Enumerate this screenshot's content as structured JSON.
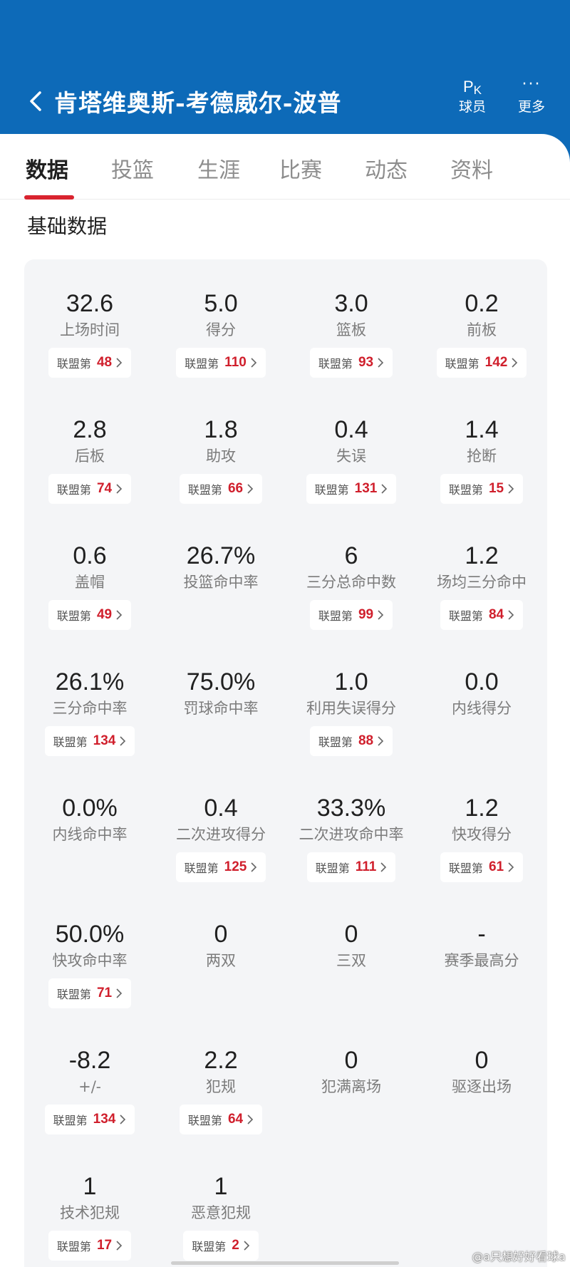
{
  "header": {
    "title": "肯塔维奥斯-考德威尔-波普",
    "pk_glyph_main": "P",
    "pk_glyph_sub": "K",
    "pk_label": "球员",
    "more_glyph": "···",
    "more_label": "更多",
    "bg_color": "#0d6ab8"
  },
  "tabs": [
    {
      "label": "数据",
      "active": true
    },
    {
      "label": "投篮",
      "active": false
    },
    {
      "label": "生涯",
      "active": false
    },
    {
      "label": "比赛",
      "active": false
    },
    {
      "label": "动态",
      "active": false
    },
    {
      "label": "资料",
      "active": false
    }
  ],
  "section_title": "基础数据",
  "rank_prefix": "联盟第",
  "accent_color": "#d01f2c",
  "stats": [
    [
      {
        "value": "32.6",
        "label": "上场时间",
        "rank": "48"
      },
      {
        "value": "5.0",
        "label": "得分",
        "rank": "110"
      },
      {
        "value": "3.0",
        "label": "篮板",
        "rank": "93"
      },
      {
        "value": "0.2",
        "label": "前板",
        "rank": "142"
      }
    ],
    [
      {
        "value": "2.8",
        "label": "后板",
        "rank": "74"
      },
      {
        "value": "1.8",
        "label": "助攻",
        "rank": "66"
      },
      {
        "value": "0.4",
        "label": "失误",
        "rank": "131"
      },
      {
        "value": "1.4",
        "label": "抢断",
        "rank": "15"
      }
    ],
    [
      {
        "value": "0.6",
        "label": "盖帽",
        "rank": "49"
      },
      {
        "value": "26.7%",
        "label": "投篮命中率",
        "rank": null
      },
      {
        "value": "6",
        "label": "三分总命中数",
        "rank": "99"
      },
      {
        "value": "1.2",
        "label": "场均三分命中",
        "rank": "84"
      }
    ],
    [
      {
        "value": "26.1%",
        "label": "三分命中率",
        "rank": "134"
      },
      {
        "value": "75.0%",
        "label": "罚球命中率",
        "rank": null
      },
      {
        "value": "1.0",
        "label": "利用失误得分",
        "rank": "88"
      },
      {
        "value": "0.0",
        "label": "内线得分",
        "rank": null
      }
    ],
    [
      {
        "value": "0.0%",
        "label": "内线命中率",
        "rank": null
      },
      {
        "value": "0.4",
        "label": "二次进攻得分",
        "rank": "125"
      },
      {
        "value": "33.3%",
        "label": "二次进攻命中率",
        "rank": "111"
      },
      {
        "value": "1.2",
        "label": "快攻得分",
        "rank": "61"
      }
    ],
    [
      {
        "value": "50.0%",
        "label": "快攻命中率",
        "rank": "71"
      },
      {
        "value": "0",
        "label": "两双",
        "rank": null
      },
      {
        "value": "0",
        "label": "三双",
        "rank": null
      },
      {
        "value": "-",
        "label": "赛季最高分",
        "rank": null
      }
    ],
    [
      {
        "value": "-8.2",
        "label": "+/-",
        "rank": "134"
      },
      {
        "value": "2.2",
        "label": "犯规",
        "rank": "64"
      },
      {
        "value": "0",
        "label": "犯满离场",
        "rank": null
      },
      {
        "value": "0",
        "label": "驱逐出场",
        "rank": null
      }
    ],
    [
      {
        "value": "1",
        "label": "技术犯规",
        "rank": "17"
      },
      {
        "value": "1",
        "label": "恶意犯规",
        "rank": "2"
      }
    ]
  ],
  "watermark": "@a只想好好看球a"
}
